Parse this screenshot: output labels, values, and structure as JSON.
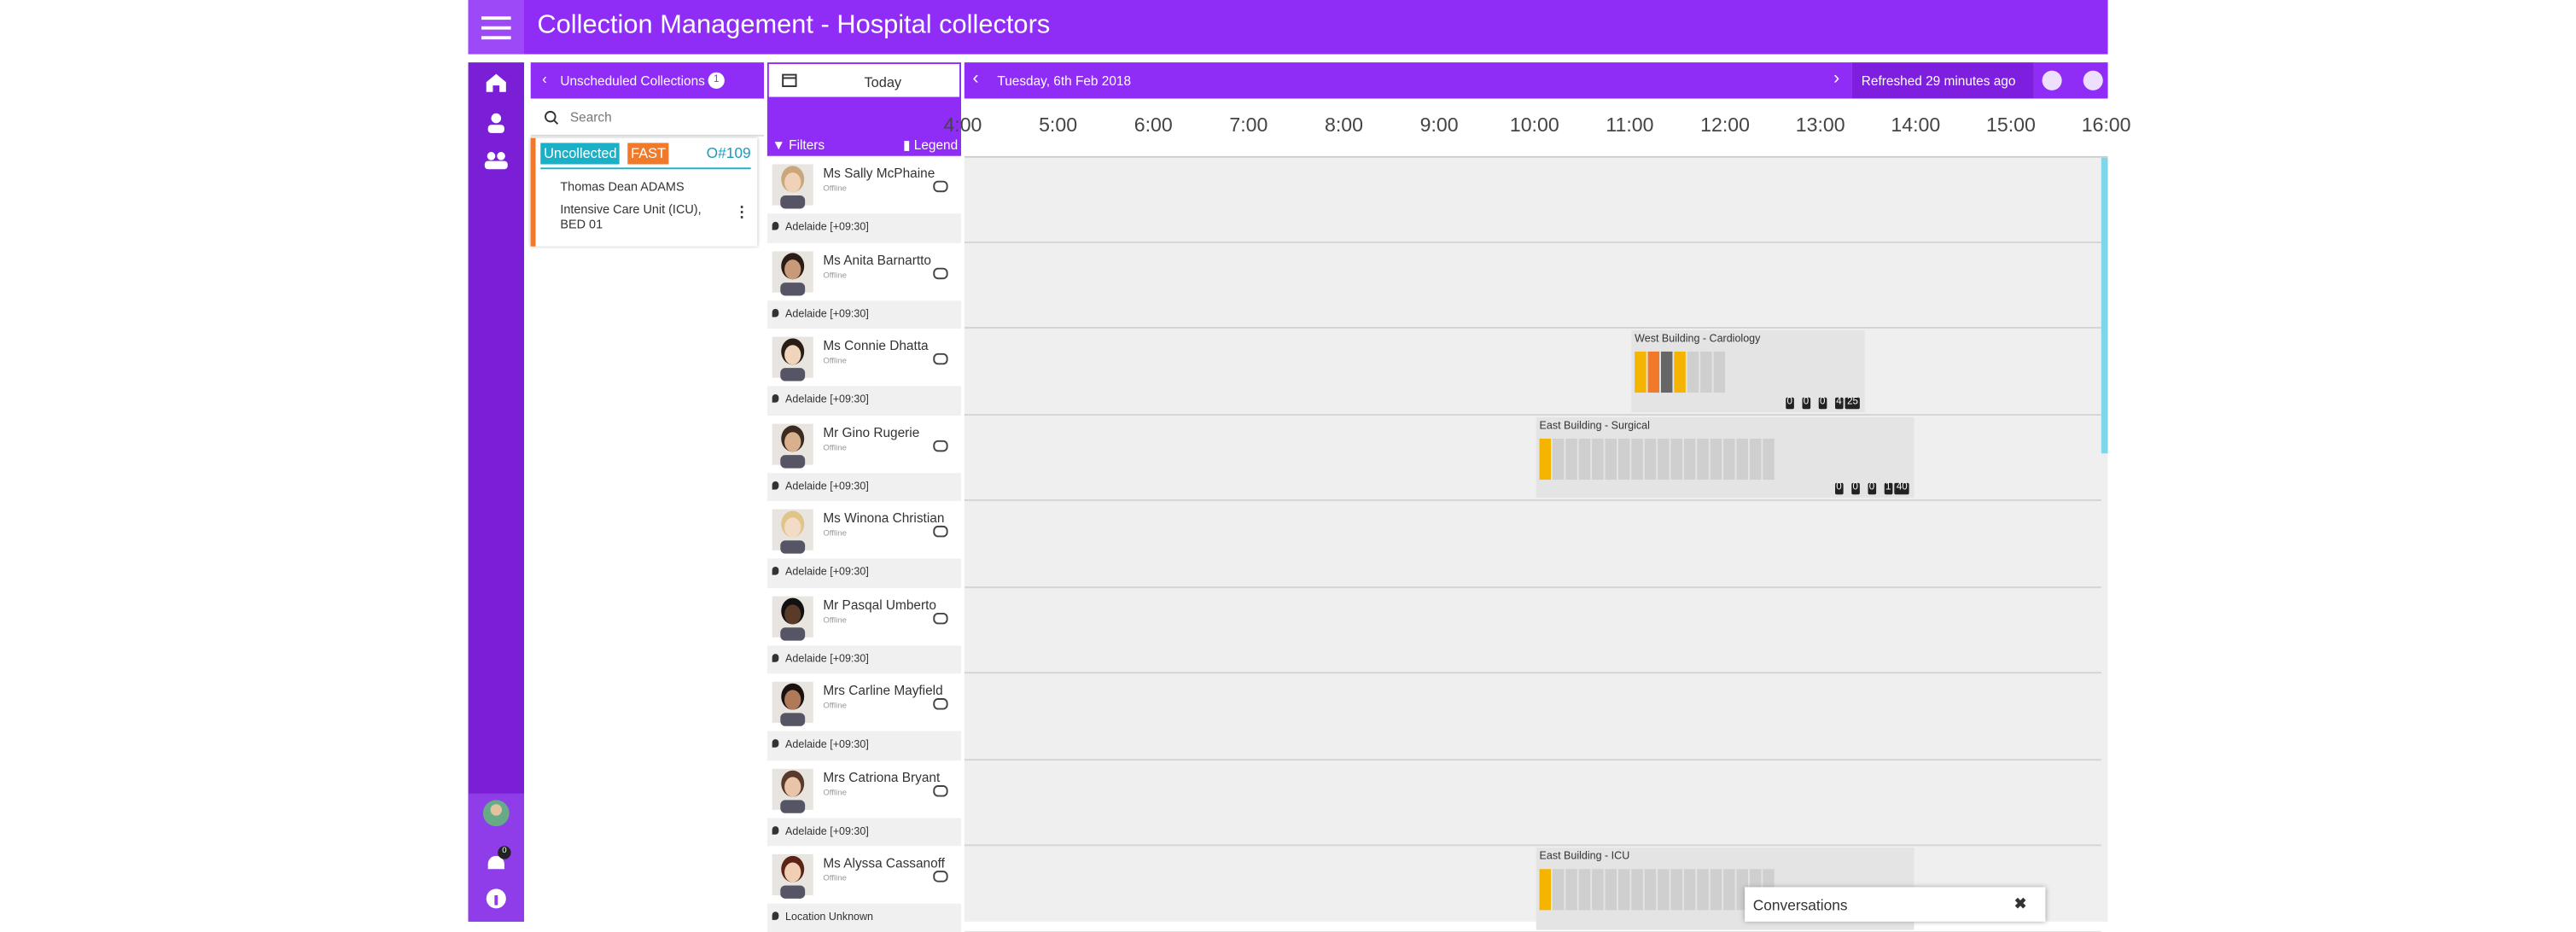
{
  "header": {
    "title": "Collection Management - Hospital collectors"
  },
  "nav": {
    "notifications": "0"
  },
  "unscheduled": {
    "title": "Unscheduled Collections",
    "count": "1",
    "search_placeholder": "Search",
    "card": {
      "status": "Uncollected",
      "priority": "FAST",
      "order": "O#109",
      "patient": "Thomas Dean ADAMS",
      "location": "Intensive Care Unit (ICU), BED 01"
    }
  },
  "collectors": {
    "today": "Today",
    "filters": "Filters",
    "legend": "Legend",
    "list": [
      {
        "name": "Ms Sally McPhaine",
        "status": "Offline",
        "location": "Adelaide [+09:30]"
      },
      {
        "name": "Ms Anita Barnartto",
        "status": "Offline",
        "location": "Adelaide [+09:30]"
      },
      {
        "name": "Ms Connie Dhatta",
        "status": "Offline",
        "location": "Adelaide [+09:30]"
      },
      {
        "name": "Mr Gino Rugerie",
        "status": "Offline",
        "location": "Adelaide [+09:30]"
      },
      {
        "name": "Ms Winona Christian",
        "status": "Offline",
        "location": "Adelaide [+09:30]"
      },
      {
        "name": "Mr Pasqal Umberto",
        "status": "Offline",
        "location": "Adelaide [+09:30]"
      },
      {
        "name": "Mrs Carline Mayfield",
        "status": "Offline",
        "location": "Adelaide [+09:30]"
      },
      {
        "name": "Mrs Catriona Bryant",
        "status": "Offline",
        "location": "Adelaide [+09:30]"
      },
      {
        "name": "Ms Alyssa Cassanoff",
        "status": "Offline",
        "location": "Location Unknown"
      }
    ]
  },
  "timeline": {
    "date": "Tuesday, 6th Feb 2018",
    "refreshed": "Refreshed 29 minutes ago",
    "hours": [
      "4:00",
      "5:00",
      "6:00",
      "7:00",
      "8:00",
      "9:00",
      "10:00",
      "11:00",
      "12:00",
      "13:00",
      "14:00",
      "15:00",
      "16:00"
    ],
    "blocks": [
      {
        "label": "West Building - Cardiology",
        "counts": [
          "0",
          "0",
          "0",
          "4",
          "25"
        ]
      },
      {
        "label": "East Building - Surgical",
        "counts": [
          "0",
          "0",
          "0",
          "1",
          "40"
        ]
      },
      {
        "label": "East Building - ICU",
        "counts": []
      }
    ]
  },
  "conversations": {
    "title": "Conversations"
  }
}
